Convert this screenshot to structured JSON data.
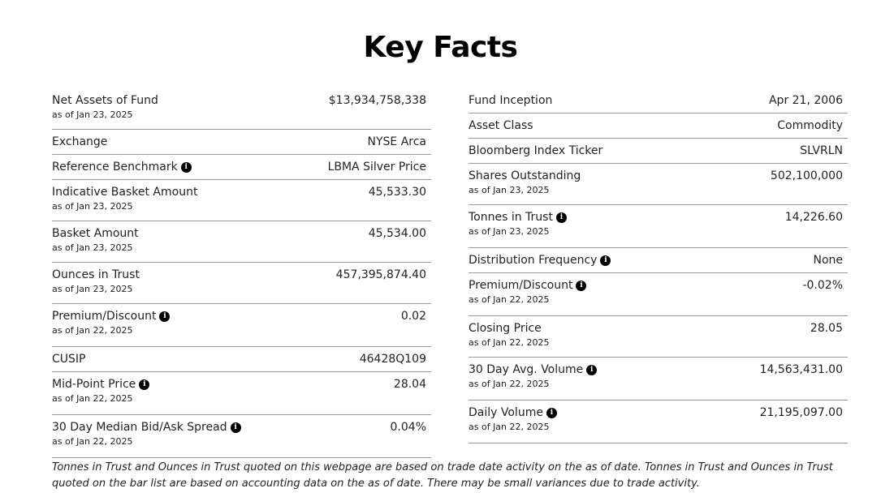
{
  "title": "Key Facts",
  "left_column": [
    {
      "label": "Net Assets of Fund",
      "as_of": "as of Jan 23, 2025",
      "value": "$13,934,758,338",
      "info": false
    },
    {
      "label": "Exchange",
      "as_of": "",
      "value": "NYSE Arca",
      "info": false
    },
    {
      "label": "Reference Benchmark",
      "as_of": "",
      "value": "LBMA Silver Price",
      "info": true
    },
    {
      "label": "Indicative Basket Amount",
      "as_of": "as of Jan 23, 2025",
      "value": "45,533.30",
      "info": false
    },
    {
      "label": "Basket Amount",
      "as_of": "as of Jan 23, 2025",
      "value": "45,534.00",
      "info": false
    },
    {
      "label": "Ounces in Trust",
      "as_of": "as of Jan 23, 2025",
      "value": "457,395,874.40",
      "info": false
    },
    {
      "label": "Premium/Discount",
      "as_of": "as of Jan 22, 2025",
      "value": "0.02",
      "info": true
    },
    {
      "label": "CUSIP",
      "as_of": "",
      "value": "46428Q109",
      "info": false
    },
    {
      "label": "Mid-Point Price",
      "as_of": "as of Jan 22, 2025",
      "value": "28.04",
      "info": true
    },
    {
      "label": "30 Day Median Bid/Ask Spread",
      "as_of": "as of Jan 22, 2025",
      "value": "0.04%",
      "info": true
    }
  ],
  "right_column": [
    {
      "label": "Fund Inception",
      "as_of": "",
      "value": "Apr 21, 2006",
      "info": false
    },
    {
      "label": "Asset Class",
      "as_of": "",
      "value": "Commodity",
      "info": false
    },
    {
      "label": "Bloomberg Index Ticker",
      "as_of": "",
      "value": "SLVRLN",
      "info": false
    },
    {
      "label": "Shares Outstanding",
      "as_of": "as of Jan 23, 2025",
      "value": "502,100,000",
      "info": false
    },
    {
      "label": "Tonnes in Trust",
      "as_of": "as of Jan 23, 2025",
      "value": "14,226.60",
      "info": true
    },
    {
      "label": "Distribution Frequency",
      "as_of": "",
      "value": "None",
      "info": true
    },
    {
      "label": "Premium/Discount",
      "as_of": "as of Jan 22, 2025",
      "value": "-0.02%",
      "info": true
    },
    {
      "label": "Closing Price",
      "as_of": "as of Jan 22, 2025",
      "value": "28.05",
      "info": false
    },
    {
      "label": "30 Day Avg. Volume",
      "as_of": "as of Jan 22, 2025",
      "value": "14,563,431.00",
      "info": true
    },
    {
      "label": "Daily Volume",
      "as_of": "as of Jan 22, 2025",
      "value": "21,195,097.00",
      "info": true
    }
  ],
  "info_icon_glyph": "i",
  "footnote": "Tonnes in Trust and Ounces in Trust quoted on this webpage are based on trade date activity on the as of date. Tonnes in Trust and Ounces in Trust quoted on the bar list are based on accounting data on the as of date. There may be small variances due to trade activity."
}
